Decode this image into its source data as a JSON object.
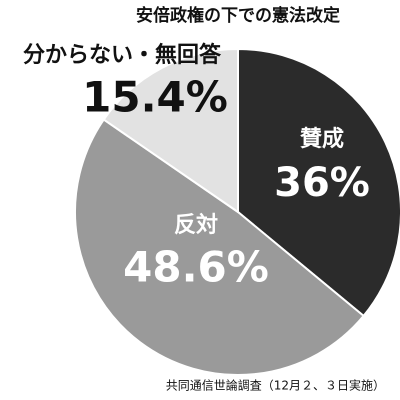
{
  "chart_data": {
    "type": "pie",
    "title": "安倍政権の下での憲法改定",
    "categories": [
      "賛成",
      "反対",
      "分からない・無回答"
    ],
    "values": [
      36,
      48.6,
      15.4
    ],
    "value_labels": [
      "36%",
      "48.6%",
      "15.4%"
    ],
    "colors": [
      "#2b2b2b",
      "#9a9a9a",
      "#e2e2e2"
    ],
    "source": "共同通信世論調査（12月２、３日実施）"
  }
}
